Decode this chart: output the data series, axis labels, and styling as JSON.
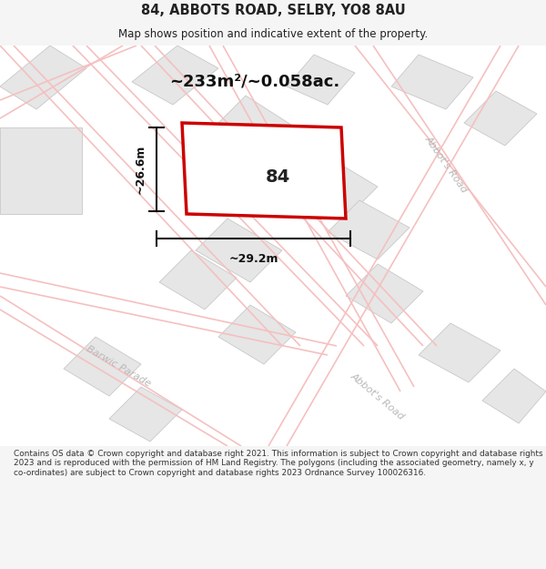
{
  "title": "84, ABBOTS ROAD, SELBY, YO8 8AU",
  "subtitle": "Map shows position and indicative extent of the property.",
  "area_label": "~233m²/~0.058ac.",
  "number_label": "84",
  "dim_h": "~26.6m",
  "dim_w": "~29.2m",
  "footer": "Contains OS data © Crown copyright and database right 2021. This information is subject to Crown copyright and database rights 2023 and is reproduced with the permission of HM Land Registry. The polygons (including the associated geometry, namely x, y co-ordinates) are subject to Crown copyright and database rights 2023 Ordnance Survey 100026316.",
  "bg_color": "#f5f5f5",
  "map_bg": "#ffffff",
  "bldg_fc": "#e6e6e6",
  "bldg_ec": "#c8c8c8",
  "road_color": "#f5c0c0",
  "road_lw": 1.2,
  "highlight_color": "#cc0000",
  "street_label_color": "#b8b8b8",
  "title_color": "#222222",
  "footer_color": "#333333",
  "dim_color": "#111111"
}
